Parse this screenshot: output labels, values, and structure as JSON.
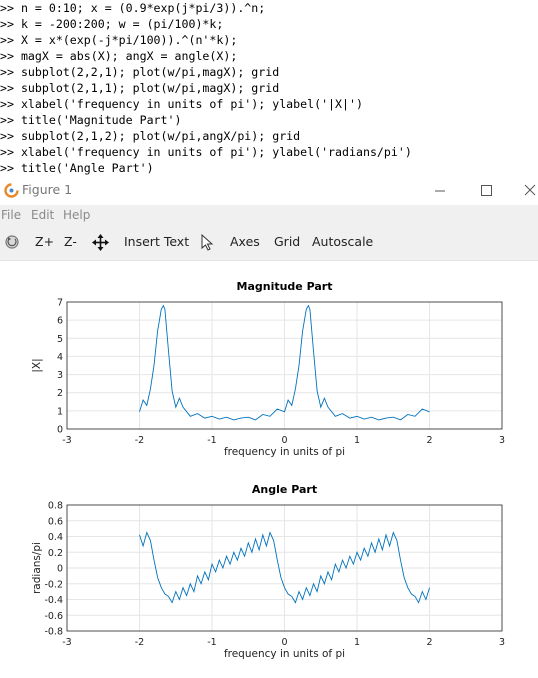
{
  "console": {
    "lines": [
      ">> n = 0:10; x = (0.9*exp(j*pi/3)).^n;",
      ">> k = -200:200; w = (pi/100)*k;",
      ">> X = x*(exp(-j*pi/100)).^(n'*k);",
      ">> magX = abs(X); angX = angle(X);",
      ">> subplot(2,2,1); plot(w/pi,magX); grid",
      ">> subplot(2,1,1); plot(w/pi,magX); grid",
      ">> xlabel('frequency in units of pi'); ylabel('|X|')",
      ">> title('Magnitude Part')",
      ">> subplot(2,1,2); plot(w/pi,angX/pi); grid",
      ">> xlabel('frequency in units of pi'); ylabel('radians/pi')",
      ">> title('Angle Part')"
    ]
  },
  "window": {
    "title": "Figure 1",
    "icons": {
      "app": "octave-logo-icon",
      "minimize": "minimize-icon",
      "maximize": "maximize-icon",
      "close": "close-icon"
    }
  },
  "menubar": {
    "items": [
      "File",
      "Edit",
      "Help"
    ]
  },
  "toolbar": {
    "rotate_icon": "rotate-icon",
    "zoom_in": "Z+",
    "zoom_out": "Z-",
    "pan_icon": "pan-icon",
    "insert_text": "Insert Text",
    "select_icon": "pointer-icon",
    "axes": "Axes",
    "grid": "Grid",
    "autoscale": "Autoscale"
  },
  "chart_data": [
    {
      "type": "line",
      "title": "Magnitude Part",
      "xlabel": "frequency in units of pi",
      "ylabel": "|X|",
      "xlim": [
        -3,
        3
      ],
      "ylim": [
        0,
        7
      ],
      "xticks": [
        "-3",
        "-2",
        "-1",
        "0",
        "1",
        "2",
        "3"
      ],
      "yticks": [
        "0",
        "1",
        "2",
        "3",
        "4",
        "5",
        "6",
        "7"
      ],
      "grid": true,
      "color": "#0072bd",
      "x": [
        -2.0,
        -1.95,
        -1.9,
        -1.85,
        -1.8,
        -1.75,
        -1.7,
        -1.67,
        -1.65,
        -1.6,
        -1.55,
        -1.5,
        -1.45,
        -1.4,
        -1.3,
        -1.2,
        -1.1,
        -1.0,
        -0.9,
        -0.8,
        -0.7,
        -0.6,
        -0.5,
        -0.4,
        -0.3,
        -0.2,
        -0.1,
        0.0,
        0.05,
        0.1,
        0.15,
        0.2,
        0.25,
        0.3,
        0.33,
        0.35,
        0.4,
        0.45,
        0.5,
        0.55,
        0.6,
        0.7,
        0.8,
        0.9,
        1.0,
        1.1,
        1.2,
        1.3,
        1.4,
        1.5,
        1.6,
        1.7,
        1.8,
        1.9,
        2.0
      ],
      "y": [
        0.95,
        1.6,
        1.3,
        2.2,
        3.5,
        5.4,
        6.6,
        6.8,
        6.6,
        4.3,
        2.1,
        1.2,
        1.7,
        1.2,
        0.7,
        0.85,
        0.6,
        0.7,
        0.55,
        0.65,
        0.5,
        0.6,
        0.65,
        0.5,
        0.8,
        0.7,
        1.1,
        0.95,
        1.6,
        1.3,
        2.2,
        3.5,
        5.4,
        6.6,
        6.8,
        6.6,
        4.3,
        2.1,
        1.2,
        1.7,
        1.2,
        0.7,
        0.85,
        0.6,
        0.7,
        0.55,
        0.65,
        0.5,
        0.6,
        0.65,
        0.5,
        0.8,
        0.7,
        1.1,
        0.95
      ]
    },
    {
      "type": "line",
      "title": "Angle Part",
      "xlabel": "frequency in units of pi",
      "ylabel": "radians/pi",
      "xlim": [
        -3,
        3
      ],
      "ylim": [
        -0.8,
        0.8
      ],
      "xticks": [
        "-3",
        "-2",
        "-1",
        "0",
        "1",
        "2",
        "3"
      ],
      "yticks": [
        "-0.8",
        "-0.6",
        "-0.4",
        "-0.2",
        "0",
        "0.2",
        "0.4",
        "0.6",
        "0.8"
      ],
      "grid": true,
      "color": "#0072bd",
      "x": [
        -2.0,
        -1.95,
        -1.9,
        -1.85,
        -1.8,
        -1.75,
        -1.7,
        -1.65,
        -1.6,
        -1.55,
        -1.5,
        -1.45,
        -1.4,
        -1.35,
        -1.3,
        -1.25,
        -1.2,
        -1.15,
        -1.1,
        -1.05,
        -1.0,
        -0.95,
        -0.9,
        -0.85,
        -0.8,
        -0.75,
        -0.7,
        -0.65,
        -0.6,
        -0.55,
        -0.5,
        -0.45,
        -0.4,
        -0.35,
        -0.3,
        -0.25,
        -0.2,
        -0.15,
        -0.1,
        -0.05,
        0.0,
        0.05,
        0.1,
        0.15,
        0.2,
        0.25,
        0.3,
        0.35,
        0.4,
        0.45,
        0.5,
        0.55,
        0.6,
        0.65,
        0.7,
        0.75,
        0.8,
        0.85,
        0.9,
        0.95,
        1.0,
        1.05,
        1.1,
        1.15,
        1.2,
        1.25,
        1.3,
        1.35,
        1.4,
        1.45,
        1.5,
        1.55,
        1.6,
        1.65,
        1.7,
        1.75,
        1.8,
        1.85,
        1.9,
        1.95,
        2.0
      ],
      "y": [
        0.42,
        0.28,
        0.45,
        0.35,
        0.1,
        -0.12,
        -0.25,
        -0.33,
        -0.36,
        -0.44,
        -0.3,
        -0.4,
        -0.25,
        -0.35,
        -0.2,
        -0.3,
        -0.1,
        -0.2,
        -0.05,
        -0.15,
        0.05,
        -0.05,
        0.1,
        0.0,
        0.15,
        0.05,
        0.2,
        0.1,
        0.25,
        0.15,
        0.32,
        0.2,
        0.37,
        0.23,
        0.42,
        0.28,
        0.45,
        0.35,
        0.1,
        -0.12,
        -0.25,
        -0.33,
        -0.36,
        -0.44,
        -0.3,
        -0.4,
        -0.25,
        -0.35,
        -0.2,
        -0.3,
        -0.1,
        -0.2,
        -0.05,
        -0.15,
        0.05,
        -0.05,
        0.1,
        0.0,
        0.15,
        0.05,
        0.2,
        0.1,
        0.25,
        0.15,
        0.32,
        0.2,
        0.37,
        0.23,
        0.42,
        0.28,
        0.45,
        0.35,
        0.1,
        -0.12,
        -0.25,
        -0.33,
        -0.36,
        -0.44,
        -0.3,
        -0.4,
        -0.25
      ]
    }
  ]
}
